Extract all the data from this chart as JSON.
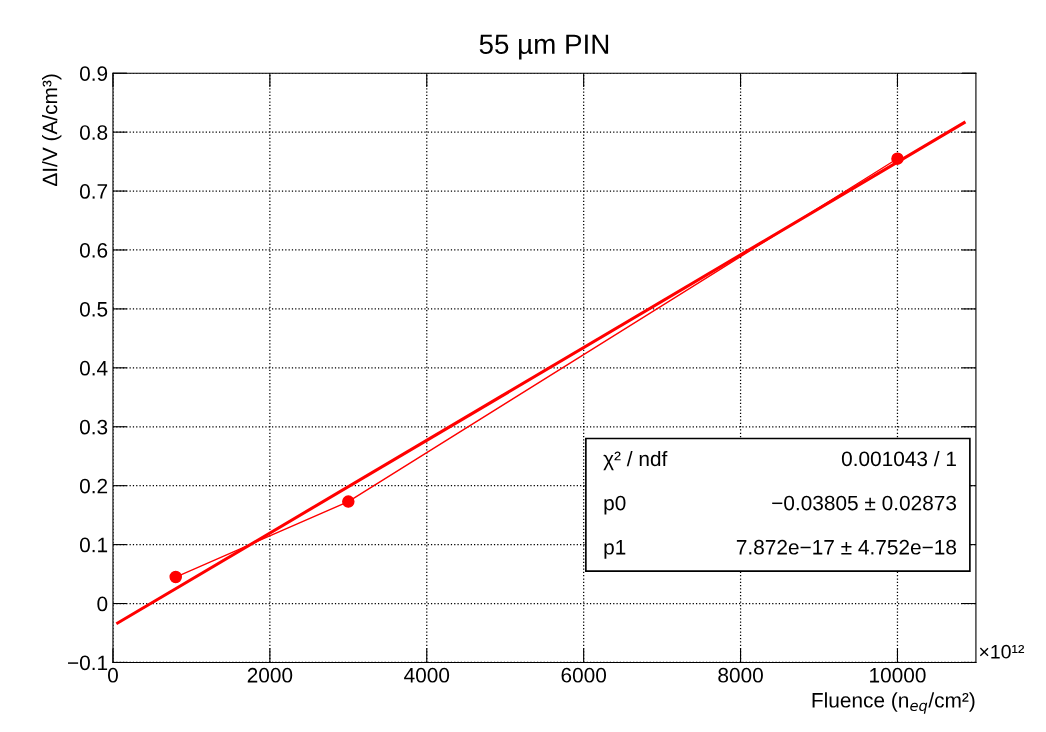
{
  "chart_data": {
    "type": "line",
    "title": "55 µm PIN",
    "xlabel": "Fluence (n$_{eq}$/cm²)",
    "ylabel": "ΔI/V (A/cm³)",
    "series": [
      {
        "color": "#ff0000",
        "marker": "circle",
        "x": [
          800,
          3000,
          10000
        ],
        "values": [
          0.045,
          0.173,
          0.755
        ]
      },
      {
        "color": "#ff0000",
        "marker": "none",
        "x": [
          60,
          10850
        ],
        "values": [
          -0.033,
          0.816
        ]
      }
    ],
    "xlim": [
      0,
      11000
    ],
    "xticks": [
      0,
      2000,
      4000,
      6000,
      8000,
      10000
    ],
    "ylim": [
      -0.1,
      0.9
    ],
    "yticks": [
      {
        "value": -0.1,
        "label": "−0.1"
      },
      0,
      0.1,
      0.2,
      0.3,
      0.4,
      0.5,
      0.6,
      0.7,
      0.8,
      0.9
    ],
    "grid": true,
    "legend": false,
    "annotations": [
      "×10¹²",
      "χ² / ndf",
      "0.001043 / 1",
      "p0",
      "−0.03805 ± 0.02873",
      "p1",
      "7.872e−17 ± 4.752e−18"
    ]
  }
}
